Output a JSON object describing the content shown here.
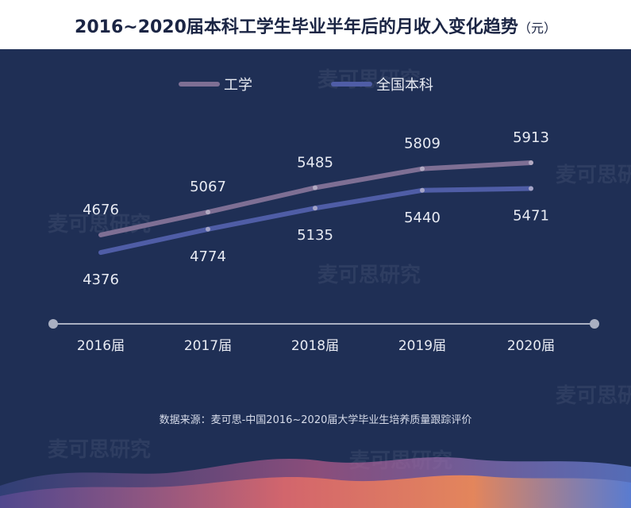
{
  "header": {
    "title": "2016~2020届本科工学生毕业半年后的月收入变化趋势",
    "unit": "（元）"
  },
  "watermark": "麦可思研究",
  "source_note": "数据来源：麦可思-中国2016~2020届大学毕业生培养质量跟踪评价",
  "colors": {
    "background": "#1f2f55",
    "series_engineering": "#7e6f94",
    "series_all": "#4f5da6",
    "axis": "#aab0c2",
    "text": "#e8ebf3"
  },
  "chart_data": {
    "type": "line",
    "title": "2016~2020届本科工学生毕业半年后的月收入变化趋势",
    "unit": "元",
    "categories": [
      "2016届",
      "2017届",
      "2018届",
      "2019届",
      "2020届"
    ],
    "series": [
      {
        "name": "工学",
        "values": [
          4676,
          5067,
          5485,
          5809,
          5913
        ],
        "color": "#7e6f94"
      },
      {
        "name": "全国本科",
        "values": [
          4376,
          4774,
          5135,
          5440,
          5471
        ],
        "color": "#4f5da6"
      }
    ],
    "legend_position": "top-center",
    "grid": false,
    "data_labels": true
  }
}
